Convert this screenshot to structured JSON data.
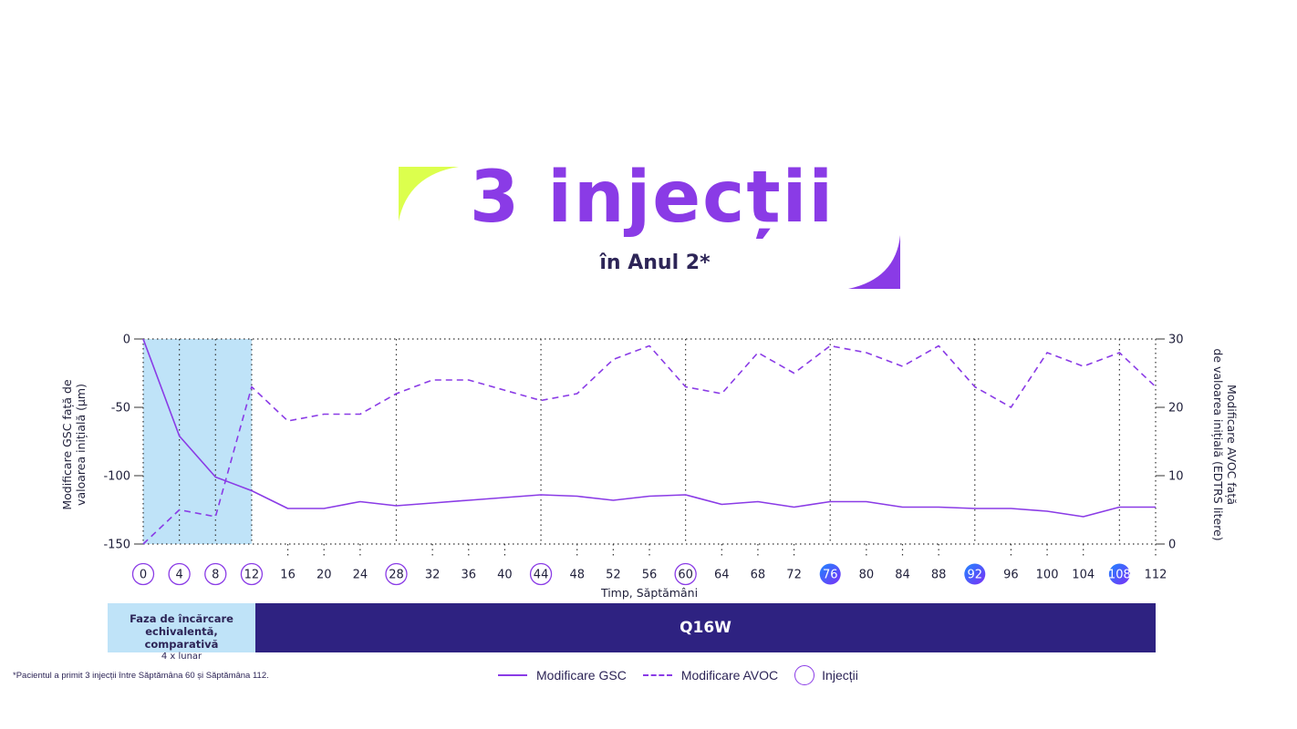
{
  "header": {
    "title": "3 injecții",
    "subtitle": "în Anul 2*"
  },
  "colors": {
    "accent": "#8a3be6",
    "lime": "#dcff4d",
    "phase_fill": "#bfe3f8",
    "bar": "#2e2281",
    "dark_text": "#2d2557",
    "injection_gradient_start": "#1f86ff",
    "injection_gradient_end": "#7b2ff7"
  },
  "chart_data": {
    "type": "line",
    "x": [
      0,
      4,
      8,
      12,
      16,
      20,
      24,
      28,
      32,
      36,
      40,
      44,
      48,
      52,
      56,
      60,
      64,
      68,
      72,
      76,
      80,
      84,
      88,
      92,
      96,
      100,
      104,
      108,
      112
    ],
    "xlabel": "Timp, Săptămâni",
    "ylabel_left": "Modificare GSC față de valoarea inițială (μm)",
    "ylabel_right": "Modificare AVOC față de valoarea inițială (EDTRS litere)",
    "ylim_left": [
      -150,
      0
    ],
    "ylim_right": [
      0,
      30
    ],
    "yticks_left": [
      0,
      -50,
      -100,
      -150
    ],
    "yticks_right": [
      30,
      20,
      10,
      0
    ],
    "series": [
      {
        "name": "Modificare GSC",
        "axis": "left",
        "style": "solid",
        "values": [
          0,
          -71,
          -101,
          -111,
          -124,
          -124,
          -119,
          -122,
          -120,
          -118,
          -116,
          -114,
          -115,
          -118,
          -115,
          -114,
          -121,
          -119,
          -123,
          -119,
          -119,
          -123,
          -123,
          -124,
          -124,
          -126,
          -130,
          -123,
          -123
        ]
      },
      {
        "name": "Modificare AVOC",
        "axis": "right",
        "style": "dashed",
        "values": [
          0,
          5,
          4,
          23,
          18,
          19,
          19,
          22,
          24,
          24,
          22.5,
          21,
          22,
          27,
          29,
          23,
          22,
          28,
          25,
          29,
          28,
          26,
          29,
          23,
          20,
          28,
          26,
          28,
          23
        ]
      }
    ],
    "injections_loading": [
      0,
      4,
      8,
      12
    ],
    "injections_comparative": [
      28,
      44,
      60
    ],
    "injections_year2": [
      76,
      92,
      108
    ],
    "loading_phase": [
      0,
      12
    ],
    "legend": {
      "gsc": "Modificare GSC",
      "avoc": "Modificare AVOC",
      "injections": "Injecții"
    },
    "legend_position": "bottom"
  },
  "phase": {
    "loading_label": "Faza de încărcare echivalentă, comparativă",
    "loading_sublabel": "4 x lunar",
    "regimen_label": "Q16W"
  },
  "footnote": "*Pacientul a primit 3 injecții între Săptămâna 60 și Săptămâna 112."
}
